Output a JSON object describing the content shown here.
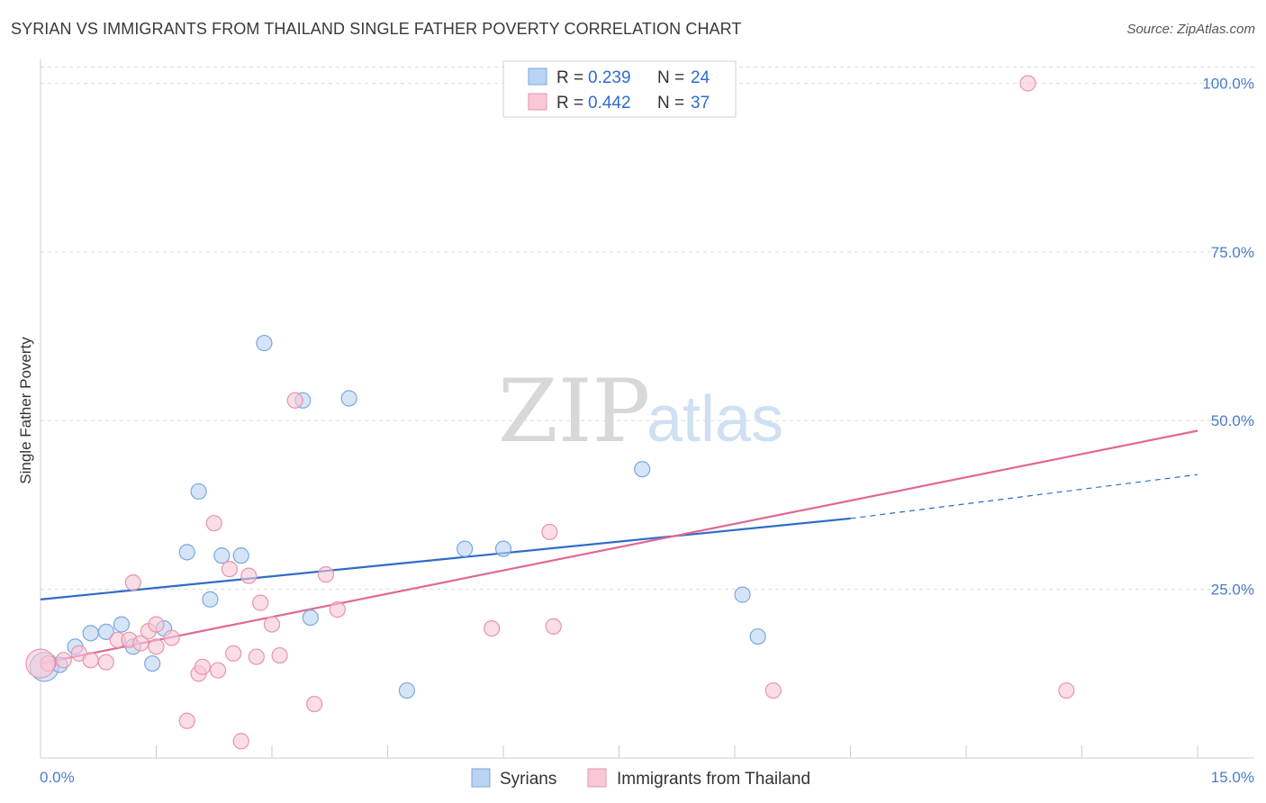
{
  "title": "SYRIAN VS IMMIGRANTS FROM THAILAND SINGLE FATHER POVERTY CORRELATION CHART",
  "source": "Source: ZipAtlas.com",
  "watermark": {
    "zip": "ZIP",
    "atlas": "atlas"
  },
  "colors": {
    "syrians_fill": "#b9d3f2",
    "syrians_stroke": "#7aa7de",
    "syrians_line": "#2d6cc9",
    "thai_fill": "#f9c7d6",
    "thai_stroke": "#e893ae",
    "thai_line": "#e06896",
    "grid": "#dcdcdc",
    "axis_label": "#4a7cc9"
  },
  "legend": {
    "rows": [
      {
        "r_label": "R =",
        "r_value": "0.239",
        "n_label": "N =",
        "n_value": "24"
      },
      {
        "r_label": "R =",
        "r_value": "0.442",
        "n_label": "N =",
        "n_value": "37"
      }
    ]
  },
  "chart_data": {
    "type": "scatter",
    "title": "SYRIAN VS IMMIGRANTS FROM THAILAND SINGLE FATHER POVERTY CORRELATION CHART",
    "xlabel": "",
    "ylabel": "Single Father Poverty",
    "xlim": [
      0,
      15
    ],
    "ylim": [
      0,
      103
    ],
    "x_tick_labels": [
      "0.0%",
      "15.0%"
    ],
    "y_ticks": [
      25,
      50,
      75,
      100
    ],
    "y_tick_labels": [
      "25.0%",
      "50.0%",
      "75.0%",
      "100.0%"
    ],
    "series": [
      {
        "name": "Syrians",
        "points": [
          [
            0.05,
            13.5
          ],
          [
            0.25,
            13.8
          ],
          [
            0.45,
            16.5
          ],
          [
            0.65,
            18.5
          ],
          [
            0.85,
            18.7
          ],
          [
            1.05,
            19.8
          ],
          [
            1.2,
            16.5
          ],
          [
            1.45,
            14.0
          ],
          [
            1.6,
            19.2
          ],
          [
            1.9,
            30.5
          ],
          [
            2.05,
            39.5
          ],
          [
            2.2,
            23.5
          ],
          [
            2.35,
            30.0
          ],
          [
            2.6,
            30.0
          ],
          [
            2.9,
            61.5
          ],
          [
            3.4,
            53.0
          ],
          [
            3.5,
            20.8
          ],
          [
            4.0,
            53.3
          ],
          [
            4.75,
            10.0
          ],
          [
            5.5,
            31.0
          ],
          [
            6.0,
            31.0
          ],
          [
            7.8,
            42.8
          ],
          [
            9.1,
            24.2
          ],
          [
            9.3,
            18.0
          ]
        ],
        "trend": {
          "x": [
            0,
            10.5
          ],
          "y": [
            23.5,
            35.5
          ],
          "dashed_extension_x": [
            10.5,
            15
          ],
          "dashed_extension_y": [
            35.5,
            42
          ]
        }
      },
      {
        "name": "Immigrants from Thailand",
        "points": [
          [
            0.1,
            14.0
          ],
          [
            0.3,
            14.5
          ],
          [
            0.5,
            15.5
          ],
          [
            0.65,
            14.5
          ],
          [
            0.85,
            14.2
          ],
          [
            1.0,
            17.5
          ],
          [
            1.15,
            17.5
          ],
          [
            1.3,
            17.0
          ],
          [
            1.4,
            18.8
          ],
          [
            1.2,
            26.0
          ],
          [
            1.5,
            19.8
          ],
          [
            1.5,
            16.5
          ],
          [
            1.7,
            17.8
          ],
          [
            1.9,
            5.5
          ],
          [
            2.05,
            12.5
          ],
          [
            2.1,
            13.5
          ],
          [
            2.25,
            34.8
          ],
          [
            2.3,
            13.0
          ],
          [
            2.45,
            28.0
          ],
          [
            2.5,
            15.5
          ],
          [
            2.6,
            2.5
          ],
          [
            2.7,
            27.0
          ],
          [
            2.8,
            15.0
          ],
          [
            2.85,
            23.0
          ],
          [
            3.0,
            19.8
          ],
          [
            3.1,
            15.2
          ],
          [
            3.3,
            53.0
          ],
          [
            3.55,
            8.0
          ],
          [
            3.7,
            27.2
          ],
          [
            3.85,
            22.0
          ],
          [
            5.85,
            19.2
          ],
          [
            6.6,
            33.5
          ],
          [
            6.65,
            19.5
          ],
          [
            9.5,
            10.0
          ],
          [
            12.8,
            100.0
          ],
          [
            13.3,
            10.0
          ],
          [
            0.0,
            14.0
          ]
        ],
        "trend": {
          "x": [
            0,
            15
          ],
          "y": [
            14.0,
            48.5
          ]
        }
      }
    ]
  },
  "bottom_legend": [
    {
      "label": "Syrians"
    },
    {
      "label": "Immigrants from Thailand"
    }
  ]
}
